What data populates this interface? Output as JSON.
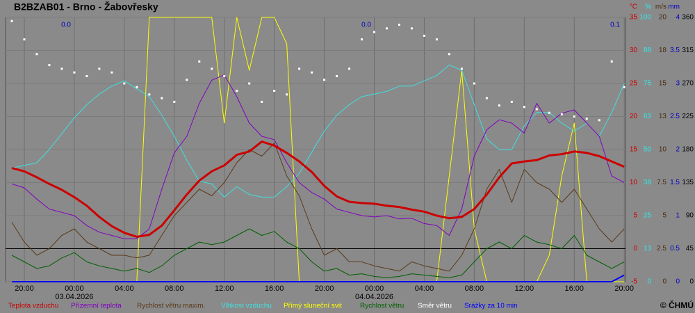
{
  "chart_data": {
    "type": "line",
    "title": "B2BZAB01 - Brno - Žabovřesky",
    "x": [
      -5,
      -4,
      -3,
      -2,
      -1,
      0,
      1,
      2,
      3,
      4,
      5,
      6,
      7,
      8,
      9,
      10,
      11,
      12,
      13,
      14,
      15,
      16,
      17,
      18,
      19,
      20,
      21,
      22,
      23,
      24,
      25,
      26,
      27,
      28,
      29,
      30,
      31,
      32,
      33,
      34,
      35,
      36,
      37,
      38,
      39,
      40,
      41,
      42,
      43,
      44
    ],
    "xlim": [
      -5.5,
      44.1
    ],
    "xticks": [
      {
        "value": -4,
        "label": "20:00"
      },
      {
        "value": 0,
        "label": "00:00"
      },
      {
        "value": 4,
        "label": "04:00"
      },
      {
        "value": 8,
        "label": "08:00"
      },
      {
        "value": 12,
        "label": "12:00"
      },
      {
        "value": 16,
        "label": "16:00"
      },
      {
        "value": 20,
        "label": "20:00"
      },
      {
        "value": 24,
        "label": "00:00"
      },
      {
        "value": 28,
        "label": "04:00"
      },
      {
        "value": 32,
        "label": "08:00"
      },
      {
        "value": 36,
        "label": "12:00"
      },
      {
        "value": 40,
        "label": "16:00"
      },
      {
        "value": 44,
        "label": "20:00"
      }
    ],
    "date_labels": [
      {
        "value": 0,
        "label": "03.04.2026"
      },
      {
        "value": 24,
        "label": "04.04.2026"
      }
    ],
    "grid": true,
    "axes": [
      {
        "unit": "°C",
        "color": "#cc0000",
        "lim": [
          -5,
          35
        ],
        "ticks": [
          -5,
          0,
          5,
          10,
          15,
          20,
          25,
          30,
          35
        ]
      },
      {
        "unit": "%",
        "color": "#30e8e8",
        "lim": [
          0,
          100
        ],
        "ticks": [
          0,
          {
            "value": 12.5,
            "label": "13"
          },
          25,
          {
            "value": 37.5,
            "label": "38"
          },
          50,
          {
            "value": 62.5,
            "label": "63"
          },
          75,
          {
            "value": 87.5,
            "label": "88"
          },
          100
        ]
      },
      {
        "unit": "m/s",
        "color": "#4a2a10",
        "lim": [
          0,
          20
        ],
        "ticks": [
          0,
          2.5,
          5,
          7.5,
          10,
          {
            "value": 12.5,
            "label": "13"
          },
          15,
          {
            "value": 17.5,
            "label": "18"
          },
          20
        ]
      },
      {
        "unit": "mm",
        "color": "#0000c8",
        "lim": [
          0,
          4
        ],
        "ticks": [
          0,
          0.5,
          1,
          1.5,
          2,
          2.5,
          3,
          3.5,
          4
        ]
      },
      {
        "color": "#000000",
        "lim": [
          0,
          360
        ],
        "ticks": [
          0,
          45,
          90,
          135,
          180,
          225,
          270,
          315,
          360
        ]
      }
    ],
    "series": [
      {
        "name": "Teplota vzduchu",
        "color": "#cc0000",
        "axis": 0,
        "style": "line",
        "width": 3,
        "values": [
          12.2,
          11.7,
          10.8,
          9.8,
          8.9,
          7.8,
          6.5,
          4.8,
          3.4,
          2.4,
          1.8,
          2.1,
          3.5,
          5.8,
          8.2,
          10.3,
          11.7,
          12.6,
          14.2,
          14.7,
          16.2,
          15.6,
          14.5,
          13.2,
          11.6,
          9.5,
          7.9,
          7.1,
          6.9,
          6.8,
          6.5,
          6.3,
          5.9,
          5.6,
          5.0,
          4.6,
          4.8,
          6.0,
          8.2,
          10.8,
          12.9,
          13.2,
          13.4,
          14.1,
          14.3,
          14.7,
          14.5,
          14.0,
          13.2,
          12.4
        ]
      },
      {
        "name": "Přízemní teplota",
        "color": "#8000c0",
        "axis": 0,
        "style": "line",
        "width": 1,
        "values": [
          9.8,
          9.2,
          7.5,
          6.0,
          5.5,
          5.0,
          3.5,
          2.5,
          2.0,
          1.5,
          1.5,
          3.0,
          9.0,
          14.5,
          17.0,
          22.0,
          25.5,
          26.3,
          23.0,
          19.0,
          17.0,
          16.5,
          13.0,
          10.0,
          8.5,
          7.5,
          6.0,
          5.5,
          5.0,
          4.8,
          5.0,
          4.5,
          4.6,
          3.8,
          3.5,
          2.0,
          6.0,
          14.0,
          18.0,
          19.5,
          19.0,
          17.5,
          22.0,
          19.0,
          20.5,
          21.0,
          19.0,
          17.0,
          11.0,
          10.0
        ]
      },
      {
        "name": "Rychlost větru maxim.",
        "color": "#5a3a1a",
        "axis": 2,
        "style": "line",
        "width": 1,
        "values": [
          4.5,
          3,
          2,
          2.5,
          3.5,
          4,
          3,
          2.5,
          2,
          2,
          1.8,
          2,
          3.5,
          5,
          6,
          7,
          6.5,
          7.5,
          9,
          10,
          9.5,
          10.5,
          8,
          6.5,
          4,
          2,
          2.5,
          1.5,
          1.5,
          1.2,
          1,
          0.8,
          1.5,
          1.2,
          1,
          0.8,
          2,
          4,
          7,
          8.5,
          6,
          8.5,
          7.5,
          7,
          6,
          7,
          5.5,
          4,
          3,
          4
        ]
      },
      {
        "name": "Vlhkost vzduchu",
        "color": "#40e0e0",
        "axis": 1,
        "style": "line",
        "width": 1,
        "values": [
          43,
          44,
          45,
          50,
          56,
          62,
          67,
          71,
          74,
          76,
          73,
          70,
          63,
          55,
          46,
          38,
          37,
          32,
          36,
          33,
          32,
          32,
          36,
          41,
          49,
          57,
          63,
          67,
          70,
          71,
          72,
          74,
          74,
          76,
          78,
          82,
          80,
          67,
          54,
          50,
          50,
          59,
          64,
          64,
          60,
          57,
          60,
          55,
          64,
          75
        ]
      },
      {
        "name": "Přímý sluneční svit",
        "color": "#ffff00",
        "axis": 1,
        "style": "line",
        "width": 1,
        "values": [
          0,
          0,
          0,
          0,
          0,
          0,
          0,
          0,
          0,
          0,
          0,
          100,
          100,
          100,
          100,
          100,
          100,
          60,
          100,
          80,
          100,
          100,
          90,
          0,
          0,
          0,
          0,
          0,
          0,
          0,
          0,
          0,
          0,
          0,
          0,
          40,
          80,
          20,
          0,
          0,
          0,
          0,
          0,
          10,
          40,
          60,
          0,
          0,
          0,
          0
        ]
      },
      {
        "name": "Rychlost větru",
        "color": "#006000",
        "axis": 2,
        "style": "line",
        "width": 1,
        "values": [
          2,
          1.5,
          1,
          1.2,
          1.8,
          2.2,
          1.5,
          1.2,
          1,
          0.8,
          1,
          0.7,
          1.2,
          2,
          2.5,
          3,
          2.8,
          3,
          3.5,
          4,
          3.5,
          3.8,
          3,
          2.5,
          1.5,
          0.8,
          1,
          0.5,
          0.6,
          0.4,
          0.3,
          0.4,
          0.6,
          0.5,
          0.4,
          0.3,
          0.5,
          1.5,
          2.5,
          3,
          2.5,
          3.5,
          3,
          2.8,
          2.5,
          3.5,
          2,
          1.5,
          1,
          1.5
        ]
      },
      {
        "name": "Směr větru",
        "color": "#ffffff",
        "axis": 4,
        "style": "dots",
        "values": [
          355,
          330,
          310,
          295,
          290,
          285,
          280,
          290,
          285,
          270,
          265,
          255,
          250,
          245,
          275,
          300,
          290,
          280,
          260,
          270,
          245,
          260,
          255,
          290,
          285,
          275,
          280,
          290,
          330,
          340,
          345,
          350,
          345,
          335,
          330,
          310,
          290,
          270,
          250,
          240,
          245,
          238,
          235,
          230,
          228,
          225,
          222,
          220,
          300,
          265
        ]
      },
      {
        "name": "Srážky za 10 min",
        "color": "#0000ff",
        "axis": 3,
        "style": "line",
        "width": 2,
        "values": [
          0,
          0,
          0,
          0,
          0,
          0,
          0,
          0,
          0,
          0,
          0,
          0,
          0,
          0,
          0,
          0,
          0,
          0,
          0,
          0,
          0,
          0,
          0,
          0,
          0,
          0,
          0,
          0,
          0,
          0,
          0,
          0,
          0,
          0,
          0,
          0,
          0,
          0,
          0,
          0,
          0,
          0,
          0,
          0,
          0,
          0,
          0,
          0,
          0,
          0.1
        ]
      }
    ],
    "annotations": [
      "0.0",
      "0.0",
      "0.1"
    ],
    "copyright": "© ČHMÚ"
  }
}
